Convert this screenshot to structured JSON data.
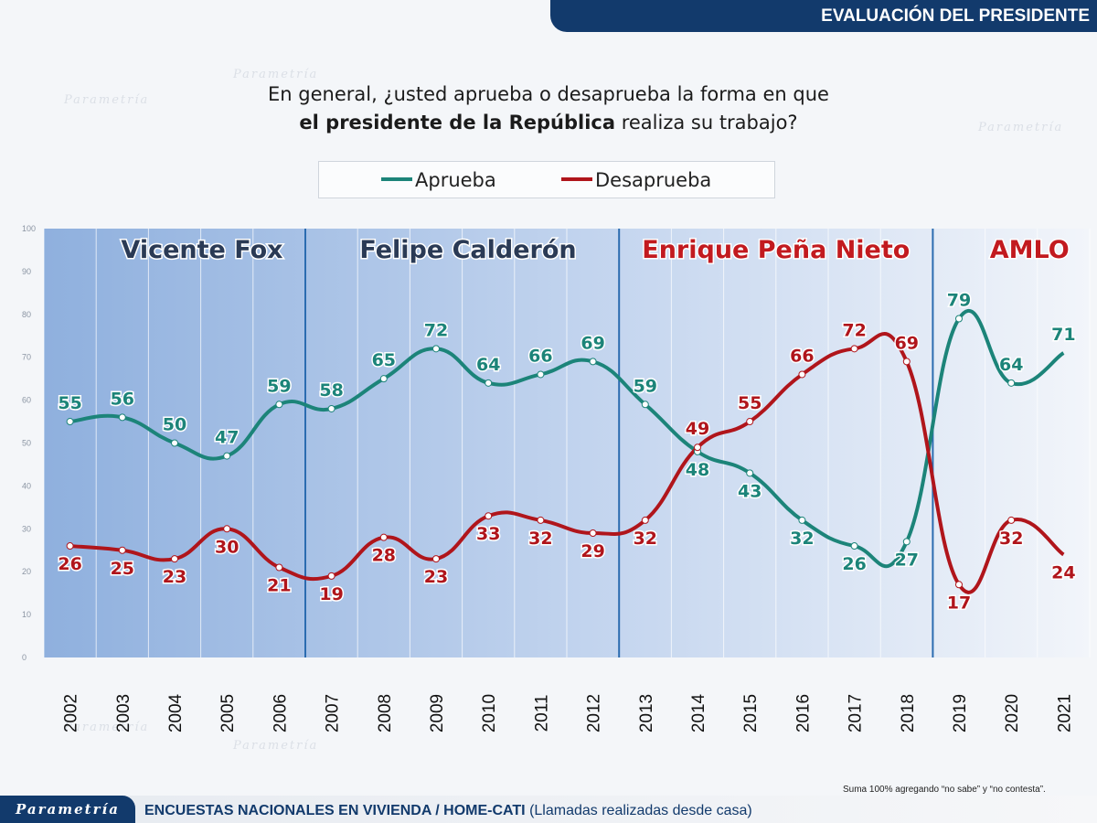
{
  "banner": {
    "title": "EVALUACIÓN DEL PRESIDENTE"
  },
  "question": {
    "line1": "En general, ¿usted aprueba o desaprueba la forma en que",
    "line2_bold": "el presidente de la República",
    "line2_rest": " realiza su trabajo?"
  },
  "footer": {
    "brand": "Parametría",
    "text_bold": "ENCUESTAS NACIONALES EN VIVIENDA / HOME-CATI",
    "text_rest": " (Llamadas realizadas desde casa)",
    "note": "Suma 100% agregando “no sabe” y “no contesta”."
  },
  "watermark": {
    "text": "Parametría"
  },
  "colors": {
    "aprueba": "#1c8479",
    "desaprueba": "#b0151b",
    "banner": "#123a6c",
    "period_line": "#2b6cb0"
  },
  "chart_data": {
    "type": "line",
    "x": [
      "2002",
      "2003",
      "2004",
      "2005",
      "2006",
      "2007",
      "2008",
      "2009",
      "2010",
      "2011",
      "2012",
      "2013",
      "2014",
      "2015",
      "2016",
      "2017",
      "2018",
      "2019",
      "2020",
      "2021"
    ],
    "ylim": [
      0,
      100
    ],
    "yticks": [
      "0",
      "10",
      "20",
      "30",
      "40",
      "50",
      "60",
      "70",
      "80",
      "90",
      "100"
    ],
    "legend_position": "top-center",
    "series": [
      {
        "name": "Aprueba",
        "values": [
          55,
          56,
          50,
          47,
          59,
          58,
          65,
          72,
          64,
          66,
          69,
          59,
          48,
          43,
          32,
          26,
          27,
          79,
          64,
          71
        ]
      },
      {
        "name": "Desaprueba",
        "values": [
          26,
          25,
          23,
          30,
          21,
          19,
          28,
          23,
          33,
          32,
          29,
          32,
          49,
          55,
          66,
          72,
          69,
          17,
          32,
          24
        ]
      }
    ],
    "periods": [
      {
        "name": "Vicente Fox"
      },
      {
        "name": "Felipe Calderón"
      },
      {
        "name": "Enrique Peña Nieto"
      },
      {
        "name": "AMLO"
      }
    ]
  }
}
